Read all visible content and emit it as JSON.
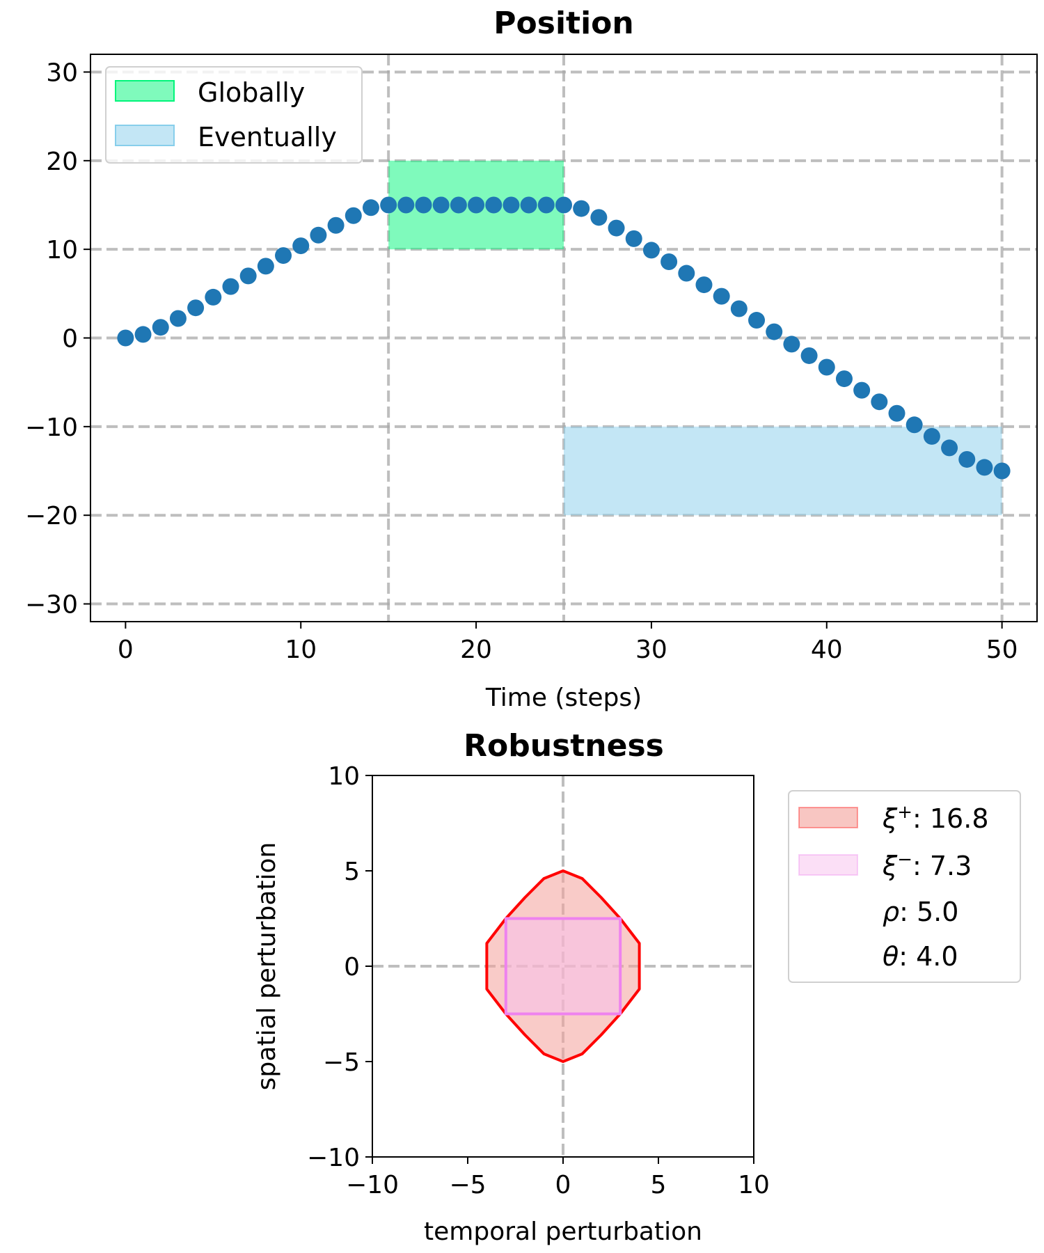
{
  "chart_data": [
    {
      "type": "scatter",
      "title": "Position",
      "xlabel": "Time (steps)",
      "ylabel": "",
      "xlim": [
        -2,
        52
      ],
      "ylim": [
        -32,
        32
      ],
      "xticks": [
        0,
        10,
        20,
        30,
        40,
        50
      ],
      "yticks": [
        -30,
        -20,
        -10,
        0,
        10,
        20,
        30
      ],
      "xtick_labels": [
        "0",
        "10",
        "20",
        "30",
        "40",
        "50"
      ],
      "ytick_labels": [
        "−30",
        "−20",
        "−10",
        "0",
        "10",
        "20",
        "30"
      ],
      "grid": "dashed at ticks",
      "extra_vlines": [
        15,
        25,
        50
      ],
      "legend_position": "top-left",
      "regions": [
        {
          "name": "Globally",
          "x": [
            15,
            25
          ],
          "y": [
            10,
            20
          ],
          "color": "#00f57a"
        },
        {
          "name": "Eventually",
          "x": [
            25,
            50
          ],
          "y": [
            -20,
            -10
          ],
          "color": "#87ceeb"
        }
      ],
      "series": [
        {
          "color": "#1f77b4",
          "x": [
            0,
            1,
            2,
            3,
            4,
            5,
            6,
            7,
            8,
            9,
            10,
            11,
            12,
            13,
            14,
            15,
            16,
            17,
            18,
            19,
            20,
            21,
            22,
            23,
            24,
            25,
            26,
            27,
            28,
            29,
            30,
            31,
            32,
            33,
            34,
            35,
            36,
            37,
            38,
            39,
            40,
            41,
            42,
            43,
            44,
            45,
            46,
            47,
            48,
            49,
            50
          ],
          "y": [
            0,
            0.4,
            1.2,
            2.2,
            3.4,
            4.6,
            5.8,
            7.0,
            8.1,
            9.3,
            10.4,
            11.6,
            12.7,
            13.8,
            14.7,
            15,
            15,
            15,
            15,
            15,
            15,
            15,
            15,
            15,
            15,
            15,
            14.6,
            13.6,
            12.4,
            11.2,
            9.9,
            8.6,
            7.3,
            6.0,
            4.7,
            3.3,
            2.0,
            0.7,
            -0.7,
            -2.0,
            -3.3,
            -4.6,
            -5.9,
            -7.2,
            -8.5,
            -9.8,
            -11.1,
            -12.4,
            -13.7,
            -14.6,
            -15
          ]
        }
      ]
    },
    {
      "type": "area",
      "title": "Robustness",
      "xlabel": "temporal perturbation",
      "ylabel": "spatial perturbation",
      "xlim": [
        -10,
        10
      ],
      "ylim": [
        -10,
        10
      ],
      "xticks": [
        -10,
        -5,
        0,
        5,
        10
      ],
      "yticks": [
        -10,
        -5,
        0,
        5,
        10
      ],
      "xtick_labels": [
        "−10",
        "−5",
        "0",
        "5",
        "10"
      ],
      "ytick_labels": [
        "−10",
        "−5",
        "0",
        "5",
        "10"
      ],
      "grid": "dashed at 0 only",
      "legend_position": "outside right",
      "regions": [
        {
          "name": "ξ⁺: 16.8",
          "label_symbol": "ξ",
          "label_sup": "+",
          "label_value": ": 16.8",
          "fill": "#f4a09a",
          "edge": "#ff0000",
          "polygon": [
            [
              0,
              5
            ],
            [
              1,
              4.6
            ],
            [
              2,
              3.6
            ],
            [
              3,
              2.5
            ],
            [
              4,
              1.2
            ],
            [
              4,
              -1.2
            ],
            [
              3,
              -2.5
            ],
            [
              2,
              -3.6
            ],
            [
              1,
              -4.6
            ],
            [
              0,
              -5
            ],
            [
              -1,
              -4.6
            ],
            [
              -2,
              -3.6
            ],
            [
              -3,
              -2.5
            ],
            [
              -4,
              -1.2
            ],
            [
              -4,
              1.2
            ],
            [
              -3,
              2.5
            ],
            [
              -2,
              3.6
            ],
            [
              -1,
              4.6
            ]
          ]
        },
        {
          "name": "ξ⁻: 7.3",
          "label_symbol": "ξ",
          "label_sup": "−",
          "label_value": ": 7.3",
          "fill": "#f7bfee",
          "edge": "#ee82ee",
          "polygon": [
            [
              -3,
              2.5
            ],
            [
              3,
              2.5
            ],
            [
              3,
              -2.5
            ],
            [
              -3,
              -2.5
            ]
          ]
        }
      ],
      "annotations": [
        {
          "symbol": "ρ",
          "text": ": 5.0"
        },
        {
          "symbol": "θ",
          "text": ": 4.0"
        }
      ]
    }
  ]
}
